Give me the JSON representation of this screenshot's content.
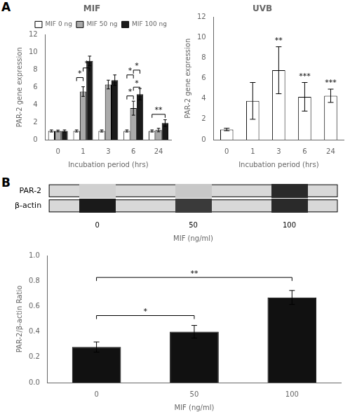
{
  "chart_data": [
    {
      "type": "bar",
      "title": "MIF",
      "x_label": "Incubation period (hrs)",
      "y_label": "PAR-2 gene expression",
      "categories": [
        "0",
        "1",
        "3",
        "6",
        "24"
      ],
      "series": [
        {
          "name": "MIF 0 ng",
          "color": "white",
          "values": [
            1.0,
            1.0,
            1.0,
            1.0,
            1.0
          ],
          "errors": [
            0.12,
            0.12,
            0.12,
            0.12,
            0.12
          ]
        },
        {
          "name": "MIF 50 ng",
          "color": "#aaaaaa",
          "values": [
            1.0,
            5.5,
            6.3,
            3.6,
            1.1
          ],
          "errors": [
            0.1,
            0.55,
            0.5,
            0.8,
            0.2
          ]
        },
        {
          "name": "MIF 100 ng",
          "color": "#1a1a1a",
          "values": [
            1.0,
            9.0,
            6.8,
            5.2,
            1.9
          ],
          "errors": [
            0.12,
            0.55,
            0.6,
            0.65,
            0.38
          ]
        }
      ],
      "ylim": [
        0,
        12
      ],
      "yticks": [
        0,
        2,
        4,
        6,
        8,
        10,
        12
      ],
      "grid": false,
      "legend": "upper right",
      "annotations": [
        {
          "text": "A"
        },
        {
          "category": "1",
          "from": "MIF 0 ng",
          "to": "MIF 50 ng",
          "y": 6.7,
          "text": "*"
        },
        {
          "category": "1",
          "from": "MIF 50 ng",
          "to": "MIF 100 ng",
          "y": 7.8,
          "text": "*"
        },
        {
          "category": "6",
          "from": "MIF 0 ng",
          "to": "MIF 50 ng",
          "y": 7.0,
          "text": "*"
        },
        {
          "category": "6",
          "from": "MIF 50 ng",
          "to": "MIF 100 ng",
          "y": 7.55,
          "text": "*"
        },
        {
          "category": "6",
          "from": "MIF 0 ng",
          "to": "MIF 50 ng",
          "y": 4.6,
          "text": "*"
        },
        {
          "category": "6",
          "from": "MIF 50 ng",
          "to": "MIF 100 ng",
          "y": 5.6,
          "text": "*"
        },
        {
          "category": "24",
          "from": "MIF 0 ng",
          "to": "MIF 100 ng",
          "y": 2.5,
          "text": "**"
        }
      ]
    },
    {
      "type": "bar",
      "title": "UVB",
      "x_label": "Incubation period (hrs)",
      "y_label": "PAR-2 gene expression",
      "categories": [
        "0",
        "1",
        "3",
        "6",
        "24"
      ],
      "values": [
        1.0,
        3.8,
        6.8,
        4.2,
        4.3
      ],
      "errors": [
        0.12,
        1.8,
        2.3,
        1.4,
        0.65
      ],
      "color": "white",
      "ylim": [
        0,
        12
      ],
      "yticks": [
        0,
        2,
        4,
        6,
        8,
        10,
        12
      ],
      "grid": false,
      "annotations": [
        {
          "category": "3",
          "text": "**"
        },
        {
          "category": "6",
          "text": "***"
        },
        {
          "category": "24",
          "text": "***"
        }
      ]
    },
    {
      "type": "blot",
      "x_label": "MIF (ng/ml)",
      "categories": [
        "0",
        "50",
        "100"
      ],
      "series": [
        {
          "name": "PAR-2",
          "colors": [
            "#d0d0d0",
            "#c8c8c8",
            "#2a2a2a"
          ]
        },
        {
          "name": "β-actin",
          "colors": [
            "#1a1a1a",
            "#3a3a3a",
            "#2a2a2a"
          ]
        }
      ],
      "annotations": [
        {
          "text": "B"
        }
      ]
    },
    {
      "type": "bar",
      "x_label": "MIF (ng/ml)",
      "y_label": "PAR-2/β-actin Ratio",
      "categories": [
        "0",
        "50",
        "100"
      ],
      "values": [
        0.28,
        0.4,
        0.67
      ],
      "errors": [
        0.04,
        0.05,
        0.055
      ],
      "color": "#111111",
      "ylim": [
        0,
        1.0
      ],
      "yticks": [
        {
          "value": 0,
          "label": "0.0"
        },
        0.2,
        0.4,
        0.6,
        0.8,
        {
          "value": 1.0,
          "label": "1.0"
        }
      ],
      "grid": false,
      "annotations": [
        {
          "from": "0",
          "to": "50",
          "y": 0.5,
          "text": "*"
        },
        {
          "from": "0",
          "to": "100",
          "y": 0.8,
          "text": "**"
        }
      ]
    }
  ]
}
